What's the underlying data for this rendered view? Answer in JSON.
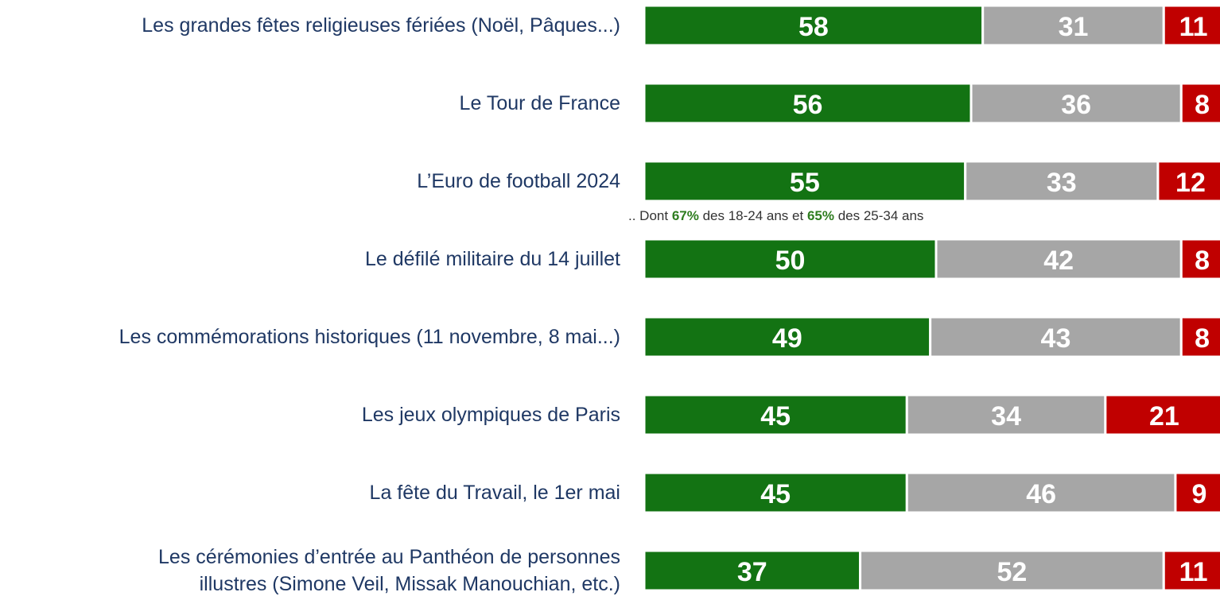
{
  "chart_data": {
    "type": "stacked-bar",
    "categories": [
      "Les grandes fêtes religieuses fériées (Noël, Pâques...)",
      "Le Tour de France",
      "L’Euro de football 2024",
      "Le défilé militaire du 14 juillet",
      "Les commémorations historiques (11 novembre, 8 mai...)",
      "Les jeux olympiques de Paris",
      "La fête du Travail, le 1er mai",
      "Les cérémonies d’entrée au Panthéon de personnes\nillustres (Simone Veil, Missak Manouchian, etc.)"
    ],
    "series": [
      {
        "color": "#137313",
        "values": [
          58,
          56,
          55,
          50,
          49,
          45,
          45,
          37
        ]
      },
      {
        "color": "#a6a6a6",
        "values": [
          31,
          36,
          33,
          42,
          43,
          34,
          46,
          52
        ]
      },
      {
        "color": "#c00000",
        "values": [
          11,
          8,
          12,
          8,
          8,
          21,
          9,
          11
        ]
      }
    ],
    "annotation": [
      ".. Dont ",
      "67%",
      " des 18-24 ans et ",
      "65%",
      " des 25-34 ans"
    ]
  }
}
